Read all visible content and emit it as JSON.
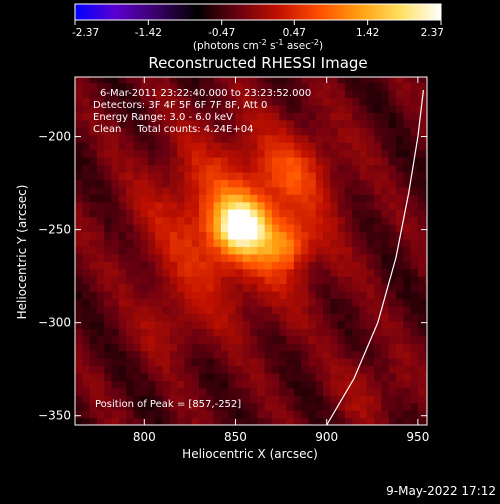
{
  "colorbar": {
    "ticks": [
      "-2.37",
      "-1.42",
      "-0.47",
      "0.47",
      "1.42",
      "2.37"
    ],
    "tick_values": [
      -2.37,
      -1.42,
      -0.47,
      0.47,
      1.42,
      2.37
    ],
    "range": [
      -2.37,
      2.37
    ],
    "units_prefix": "(photons cm",
    "units_exp1": "-2",
    "units_mid": " s",
    "units_exp2": "-1",
    "units_mid2": " asec",
    "units_exp3": "-2",
    "units_suffix": ")",
    "colormap": [
      "#0000ff",
      "#5b00d0",
      "#3a0068",
      "#000000",
      "#6a0010",
      "#c01000",
      "#ff4e00",
      "#ff9e10",
      "#ffe060",
      "#ffffff"
    ]
  },
  "plot": {
    "title": "Reconstructed RHESSI Image",
    "info_lines": [
      "6-Mar-2011 23:22:40.000 to 23:23:52.000",
      "Detectors: 3F 4F 5F 6F 7F 8F, Att 0",
      "Energy Range: 3.0 - 6.0 keV",
      "Clean     Total counts: 4.24E+04"
    ],
    "peak_text": "Position of Peak = [857,-252]",
    "footer_date": "9-May-2022 17:12"
  },
  "chart_data": {
    "type": "heatmap",
    "title": "Reconstructed RHESSI Image",
    "xlabel": "Heliocentric X (arcsec)",
    "ylabel": "Heliocentric Y (arcsec)",
    "xlim": [
      762,
      955
    ],
    "ylim": [
      -355,
      -168
    ],
    "xticks": [
      800,
      850,
      900,
      950
    ],
    "yticks": [
      -200,
      -250,
      -300,
      -350
    ],
    "xtick_labels": [
      "800",
      "850",
      "900",
      "950"
    ],
    "ytick_labels": [
      "−200",
      "−250",
      "−300",
      "−350"
    ],
    "peak": {
      "x": 857,
      "y": -252
    },
    "sources": [
      {
        "x": 853,
        "y": -248,
        "sigma": 10,
        "amp": 2.0
      },
      {
        "x": 878,
        "y": -258,
        "sigma": 9,
        "amp": 0.9
      },
      {
        "x": 850,
        "y": -245,
        "sigma": 32,
        "amp": 1.1
      },
      {
        "x": 885,
        "y": -215,
        "sigma": 14,
        "amp": 0.5
      },
      {
        "x": 815,
        "y": -300,
        "sigma": 13,
        "amp": 0.35
      },
      {
        "x": 925,
        "y": -335,
        "sigma": 14,
        "amp": 0.35
      }
    ],
    "limb_curve": [
      [
        900,
        -355
      ],
      [
        915,
        -330
      ],
      [
        928,
        -300
      ],
      [
        938,
        -265
      ],
      [
        945,
        -230
      ],
      [
        950,
        -200
      ],
      [
        953,
        -175
      ]
    ]
  }
}
